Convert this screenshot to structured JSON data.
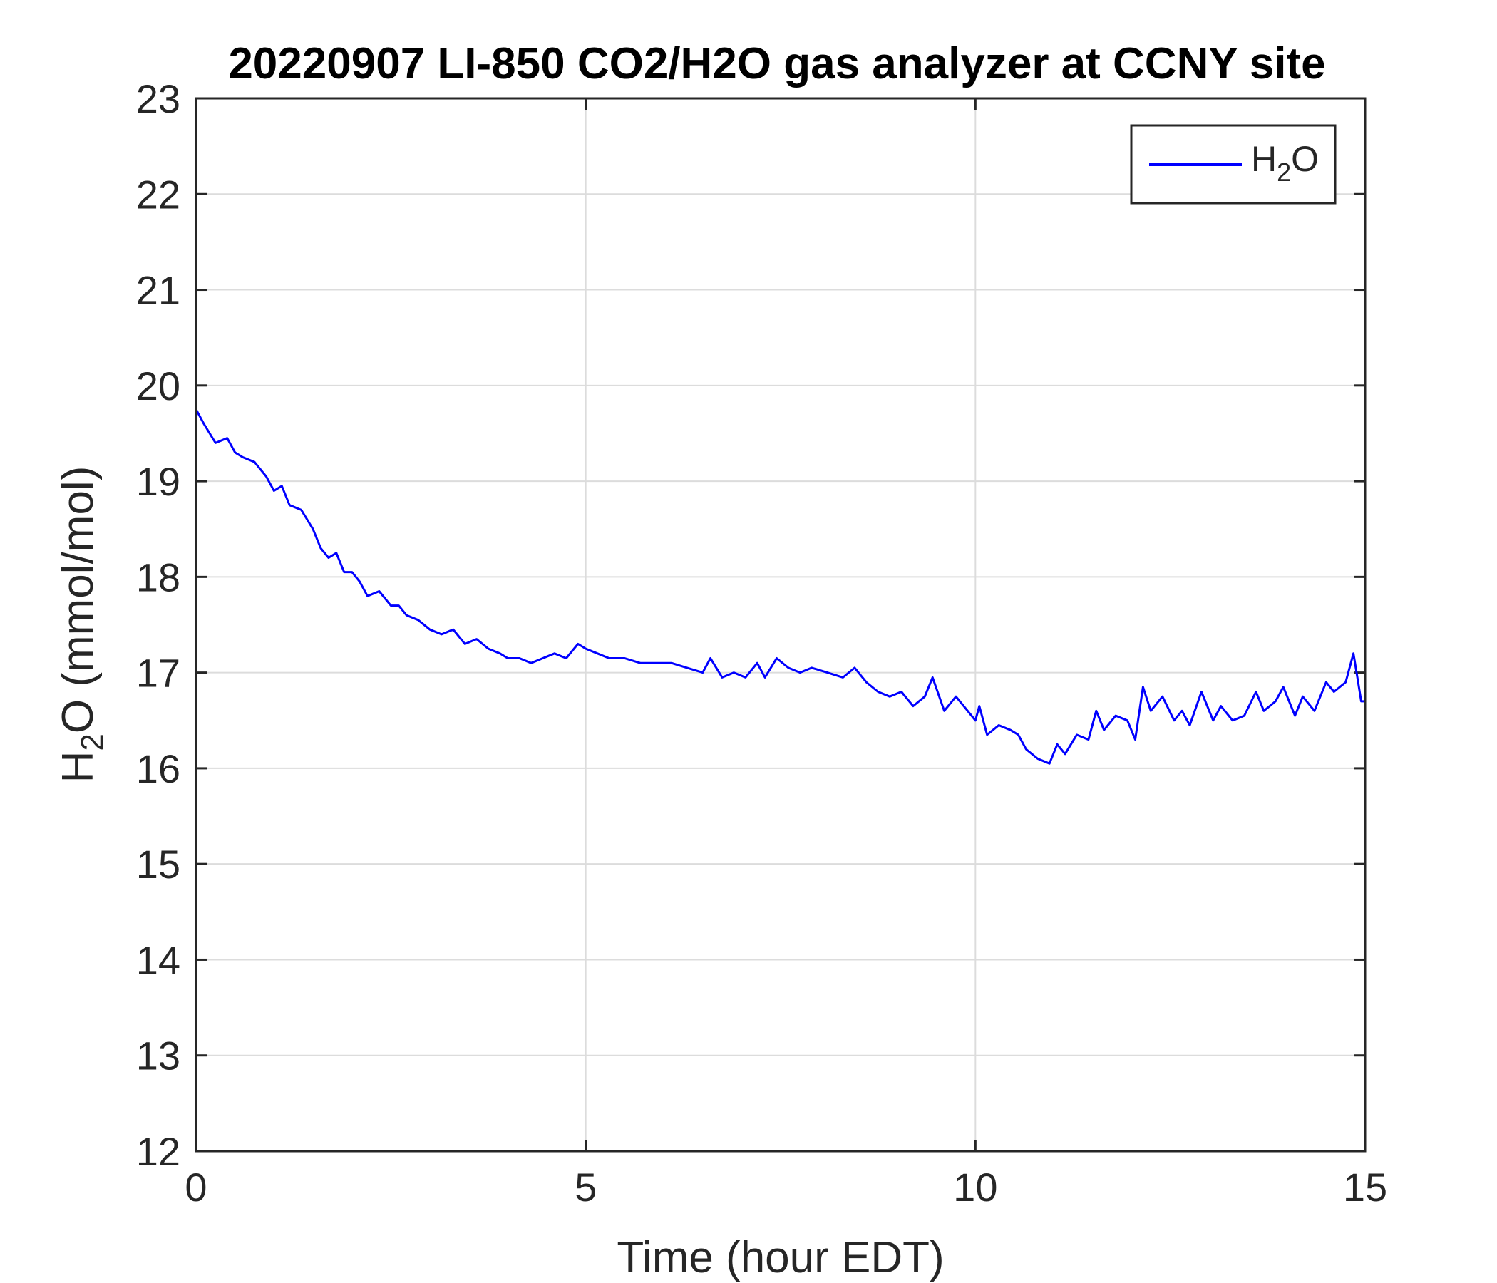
{
  "chart_data": {
    "type": "line",
    "title": "20220907 LI-850 CO2/H2O gas analyzer at CCNY site",
    "xlabel": "Time (hour EDT)",
    "ylabel": {
      "main": "H",
      "sub": "2",
      "tail": "O (mmol/mol)"
    },
    "xlim": [
      0,
      15
    ],
    "ylim": [
      12,
      23
    ],
    "xticks": [
      0,
      5,
      10,
      15
    ],
    "yticks": [
      12,
      13,
      14,
      15,
      16,
      17,
      18,
      19,
      20,
      21,
      22,
      23
    ],
    "grid": true,
    "legend": {
      "position": "top-right",
      "entries": [
        {
          "main": "H",
          "sub": "2",
          "tail": "O"
        }
      ]
    },
    "series": [
      {
        "color": "#0000ff",
        "x": [
          0.0,
          0.1,
          0.25,
          0.4,
          0.5,
          0.6,
          0.75,
          0.9,
          1.0,
          1.1,
          1.2,
          1.35,
          1.5,
          1.6,
          1.7,
          1.8,
          1.9,
          2.0,
          2.1,
          2.2,
          2.35,
          2.5,
          2.6,
          2.7,
          2.85,
          3.0,
          3.15,
          3.3,
          3.45,
          3.6,
          3.75,
          3.9,
          4.0,
          4.15,
          4.3,
          4.45,
          4.6,
          4.75,
          4.9,
          5.0,
          5.15,
          5.3,
          5.5,
          5.7,
          5.9,
          6.1,
          6.3,
          6.5,
          6.6,
          6.75,
          6.9,
          7.05,
          7.2,
          7.3,
          7.45,
          7.6,
          7.75,
          7.9,
          8.1,
          8.3,
          8.45,
          8.6,
          8.75,
          8.9,
          9.05,
          9.2,
          9.35,
          9.45,
          9.6,
          9.75,
          9.9,
          10.0,
          10.05,
          10.15,
          10.3,
          10.45,
          10.55,
          10.65,
          10.8,
          10.95,
          11.05,
          11.15,
          11.3,
          11.45,
          11.55,
          11.65,
          11.8,
          11.95,
          12.05,
          12.15,
          12.25,
          12.4,
          12.55,
          12.65,
          12.75,
          12.9,
          13.05,
          13.15,
          13.3,
          13.45,
          13.6,
          13.7,
          13.85,
          13.95,
          14.1,
          14.2,
          14.35,
          14.5,
          14.6,
          14.75,
          14.85,
          14.9,
          14.95,
          15.0
        ],
        "y": [
          19.75,
          19.6,
          19.4,
          19.45,
          19.3,
          19.25,
          19.2,
          19.05,
          18.9,
          18.95,
          18.75,
          18.7,
          18.5,
          18.3,
          18.2,
          18.25,
          18.05,
          18.05,
          17.95,
          17.8,
          17.85,
          17.7,
          17.7,
          17.6,
          17.55,
          17.45,
          17.4,
          17.45,
          17.3,
          17.35,
          17.25,
          17.2,
          17.15,
          17.15,
          17.1,
          17.15,
          17.2,
          17.15,
          17.3,
          17.25,
          17.2,
          17.15,
          17.15,
          17.1,
          17.1,
          17.1,
          17.05,
          17.0,
          17.15,
          16.95,
          17.0,
          16.95,
          17.1,
          16.95,
          17.15,
          17.05,
          17.0,
          17.05,
          17.0,
          16.95,
          17.05,
          16.9,
          16.8,
          16.75,
          16.8,
          16.65,
          16.75,
          16.95,
          16.6,
          16.75,
          16.6,
          16.5,
          16.65,
          16.35,
          16.45,
          16.4,
          16.35,
          16.2,
          16.1,
          16.05,
          16.25,
          16.15,
          16.35,
          16.3,
          16.6,
          16.4,
          16.55,
          16.5,
          16.3,
          16.85,
          16.6,
          16.75,
          16.5,
          16.6,
          16.45,
          16.8,
          16.5,
          16.65,
          16.5,
          16.55,
          16.8,
          16.6,
          16.7,
          16.85,
          16.55,
          16.75,
          16.6,
          16.9,
          16.8,
          16.9,
          17.2,
          16.95,
          16.7,
          16.7
        ]
      }
    ]
  }
}
